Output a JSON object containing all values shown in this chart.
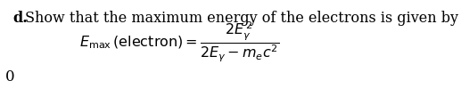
{
  "label_d": "d.",
  "text_line": "Show that the maximum energy of the electrons is given by",
  "formula": "$E_{\\mathrm{max}}\\,(\\mathrm{electron}) = \\dfrac{2E_{\\gamma}^{\\,2}}{2E_{\\gamma} - m_e c^2}$",
  "zero_label": "0",
  "bg_color": "#ffffff",
  "text_color": "#000000",
  "fontsize_header": 11.5,
  "fontsize_formula": 11.5,
  "fontsize_zero": 12
}
